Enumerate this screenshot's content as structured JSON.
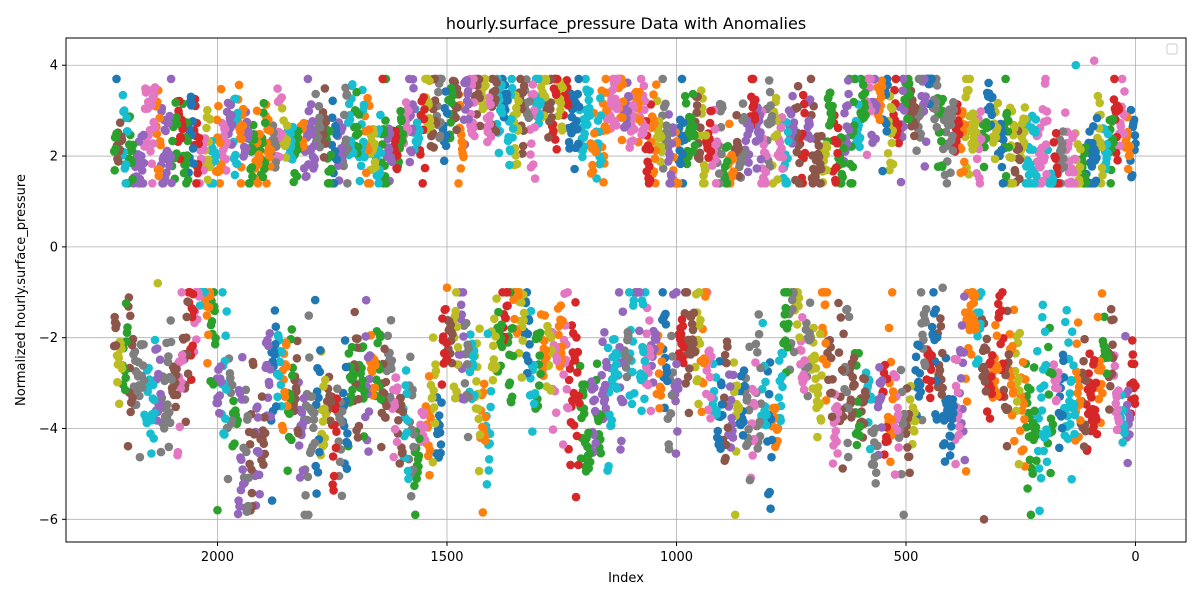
{
  "chart_data": {
    "type": "scatter",
    "title": "hourly.surface_pressure Data with Anomalies",
    "xlabel": "Index",
    "ylabel": "Normalized hourly.surface_pressure",
    "xlim": [
      2330,
      -110
    ],
    "ylim": [
      -6.5,
      4.6
    ],
    "x_inverted": true,
    "x_ticks": [
      2000,
      1500,
      1000,
      500,
      0
    ],
    "y_ticks": [
      -6,
      -4,
      -2,
      0,
      2,
      4
    ],
    "x_tick_labels": [
      "2000",
      "1500",
      "1000",
      "500",
      "0"
    ],
    "y_tick_labels": [
      "−6",
      "−4",
      "−2",
      "0",
      "2",
      "4"
    ],
    "grid": true,
    "legend": "upper right (empty)",
    "index_range": [
      0,
      2225
    ],
    "series_colors": [
      "#1f77b4",
      "#ff7f0e",
      "#2ca02c",
      "#d62728",
      "#9467bd",
      "#8c564b",
      "#e377c2",
      "#7f7f7f",
      "#bcbd22",
      "#17becf"
    ],
    "clusters": [
      {
        "name": "upper band",
        "y_center": 2.3,
        "y_min": 1.4,
        "y_max": 4.1
      },
      {
        "name": "lower band",
        "y_center": -2.7,
        "y_min": -6.0,
        "y_max": -0.8
      }
    ],
    "notable_points": [
      {
        "x": 2220,
        "y": 3.7
      },
      {
        "x": 1640,
        "y": 3.7
      },
      {
        "x": 90,
        "y": 4.1
      },
      {
        "x": 130,
        "y": 4.0
      },
      {
        "x": 2000,
        "y": -5.8
      },
      {
        "x": 330,
        "y": -6.0
      },
      {
        "x": 2130,
        "y": -0.8
      },
      {
        "x": 1500,
        "y": -0.9
      },
      {
        "x": 1000,
        "y": -1.0
      },
      {
        "x": 420,
        "y": -0.9
      }
    ]
  }
}
